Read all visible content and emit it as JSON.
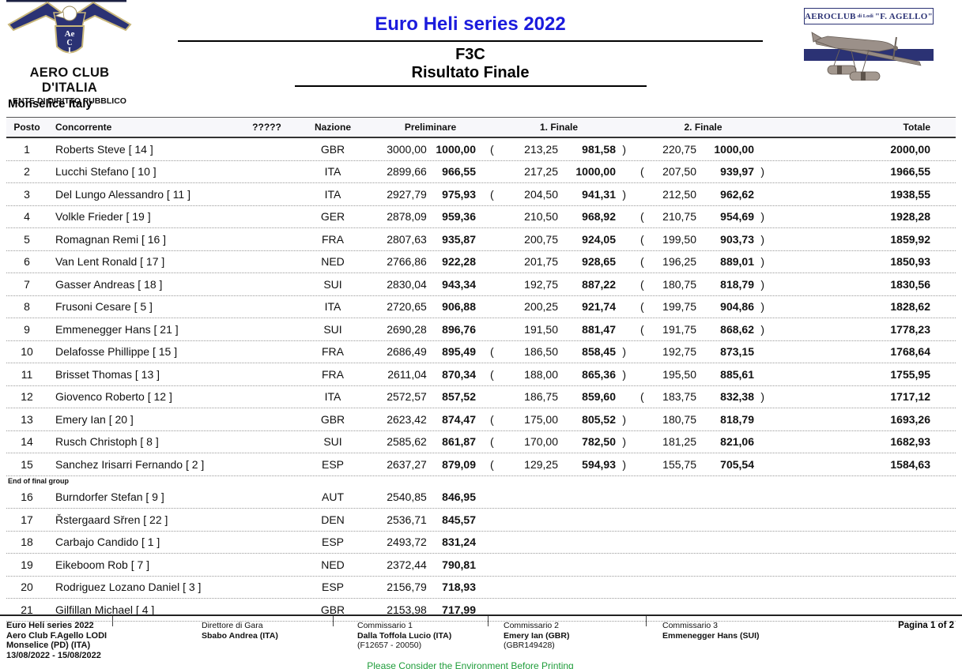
{
  "colors": {
    "title_blue": "#1b1bdd",
    "navy": "#2b3274",
    "gold": "#c9b77a",
    "eco_green": "#1f9d3a"
  },
  "header": {
    "left_logo": {
      "org": "AERO CLUB D'ITALIA",
      "sub": "ENTE DI DIRITTO PUBBLICO",
      "shield_line1": "Ae",
      "shield_line2": "C",
      "shield_line3": "I"
    },
    "title": "Euro Heli series 2022",
    "class": "F3C",
    "subtitle": "Risultato Finale",
    "right_logo": {
      "text_main": "AEROCLUB",
      "text_small": "di Lodi",
      "text_quote": "\"F. AGELLO\""
    },
    "location": "Monselice Italy"
  },
  "table": {
    "columns": {
      "posto": "Posto",
      "concorrente": "Concorrente",
      "unknown": "?????",
      "nazione": "Nazione",
      "preliminare": "Preliminare",
      "finale1": "1. Finale",
      "finale2": "2. Finale",
      "totale": "Totale"
    },
    "rows": [
      {
        "posto": "1",
        "name": "Roberts Steve  [ 14 ]",
        "nazione": "GBR",
        "prelim": {
          "raw": "3000,00",
          "pts": "1000,00"
        },
        "f1": {
          "raw": "213,25",
          "pts": "981,58",
          "dropped": true
        },
        "f2": {
          "raw": "220,75",
          "pts": "1000,00",
          "dropped": false
        },
        "totale": "2000,00"
      },
      {
        "posto": "2",
        "name": "Lucchi Stefano  [ 10 ]",
        "nazione": "ITA",
        "prelim": {
          "raw": "2899,66",
          "pts": "966,55"
        },
        "f1": {
          "raw": "217,25",
          "pts": "1000,00",
          "dropped": false
        },
        "f2": {
          "raw": "207,50",
          "pts": "939,97",
          "dropped": true
        },
        "totale": "1966,55"
      },
      {
        "posto": "3",
        "name": "Del Lungo Alessandro  [ 11 ]",
        "nazione": "ITA",
        "prelim": {
          "raw": "2927,79",
          "pts": "975,93"
        },
        "f1": {
          "raw": "204,50",
          "pts": "941,31",
          "dropped": true
        },
        "f2": {
          "raw": "212,50",
          "pts": "962,62",
          "dropped": false
        },
        "totale": "1938,55"
      },
      {
        "posto": "4",
        "name": "Volkle Frieder  [ 19 ]",
        "nazione": "GER",
        "prelim": {
          "raw": "2878,09",
          "pts": "959,36"
        },
        "f1": {
          "raw": "210,50",
          "pts": "968,92",
          "dropped": false
        },
        "f2": {
          "raw": "210,75",
          "pts": "954,69",
          "dropped": true
        },
        "totale": "1928,28"
      },
      {
        "posto": "5",
        "name": "Romagnan Remi  [ 16 ]",
        "nazione": "FRA",
        "prelim": {
          "raw": "2807,63",
          "pts": "935,87"
        },
        "f1": {
          "raw": "200,75",
          "pts": "924,05",
          "dropped": false
        },
        "f2": {
          "raw": "199,50",
          "pts": "903,73",
          "dropped": true
        },
        "totale": "1859,92"
      },
      {
        "posto": "6",
        "name": "Van Lent Ronald  [ 17 ]",
        "nazione": "NED",
        "prelim": {
          "raw": "2766,86",
          "pts": "922,28"
        },
        "f1": {
          "raw": "201,75",
          "pts": "928,65",
          "dropped": false
        },
        "f2": {
          "raw": "196,25",
          "pts": "889,01",
          "dropped": true
        },
        "totale": "1850,93"
      },
      {
        "posto": "7",
        "name": "Gasser Andreas  [ 18 ]",
        "nazione": "SUI",
        "prelim": {
          "raw": "2830,04",
          "pts": "943,34"
        },
        "f1": {
          "raw": "192,75",
          "pts": "887,22",
          "dropped": false
        },
        "f2": {
          "raw": "180,75",
          "pts": "818,79",
          "dropped": true
        },
        "totale": "1830,56"
      },
      {
        "posto": "8",
        "name": "Frusoni Cesare  [ 5 ]",
        "nazione": "ITA",
        "prelim": {
          "raw": "2720,65",
          "pts": "906,88"
        },
        "f1": {
          "raw": "200,25",
          "pts": "921,74",
          "dropped": false
        },
        "f2": {
          "raw": "199,75",
          "pts": "904,86",
          "dropped": true
        },
        "totale": "1828,62"
      },
      {
        "posto": "9",
        "name": "Emmenegger Hans  [ 21 ]",
        "nazione": "SUI",
        "prelim": {
          "raw": "2690,28",
          "pts": "896,76"
        },
        "f1": {
          "raw": "191,50",
          "pts": "881,47",
          "dropped": false
        },
        "f2": {
          "raw": "191,75",
          "pts": "868,62",
          "dropped": true
        },
        "totale": "1778,23"
      },
      {
        "posto": "10",
        "name": "Delafosse Phillippe  [ 15 ]",
        "nazione": "FRA",
        "prelim": {
          "raw": "2686,49",
          "pts": "895,49"
        },
        "f1": {
          "raw": "186,50",
          "pts": "858,45",
          "dropped": true
        },
        "f2": {
          "raw": "192,75",
          "pts": "873,15",
          "dropped": false
        },
        "totale": "1768,64"
      },
      {
        "posto": "11",
        "name": "Brisset Thomas  [ 13 ]",
        "nazione": "FRA",
        "prelim": {
          "raw": "2611,04",
          "pts": "870,34"
        },
        "f1": {
          "raw": "188,00",
          "pts": "865,36",
          "dropped": true
        },
        "f2": {
          "raw": "195,50",
          "pts": "885,61",
          "dropped": false
        },
        "totale": "1755,95"
      },
      {
        "posto": "12",
        "name": "Giovenco Roberto  [ 12 ]",
        "nazione": "ITA",
        "prelim": {
          "raw": "2572,57",
          "pts": "857,52"
        },
        "f1": {
          "raw": "186,75",
          "pts": "859,60",
          "dropped": false
        },
        "f2": {
          "raw": "183,75",
          "pts": "832,38",
          "dropped": true
        },
        "totale": "1717,12"
      },
      {
        "posto": "13",
        "name": "Emery Ian  [ 20 ]",
        "nazione": "GBR",
        "prelim": {
          "raw": "2623,42",
          "pts": "874,47"
        },
        "f1": {
          "raw": "175,00",
          "pts": "805,52",
          "dropped": true
        },
        "f2": {
          "raw": "180,75",
          "pts": "818,79",
          "dropped": false
        },
        "totale": "1693,26"
      },
      {
        "posto": "14",
        "name": "Rusch Christoph  [ 8 ]",
        "nazione": "SUI",
        "prelim": {
          "raw": "2585,62",
          "pts": "861,87"
        },
        "f1": {
          "raw": "170,00",
          "pts": "782,50",
          "dropped": true
        },
        "f2": {
          "raw": "181,25",
          "pts": "821,06",
          "dropped": false
        },
        "totale": "1682,93"
      },
      {
        "posto": "15",
        "name": "Sanchez Irisarri Fernando  [ 2 ]",
        "nazione": "ESP",
        "prelim": {
          "raw": "2637,27",
          "pts": "879,09"
        },
        "f1": {
          "raw": "129,25",
          "pts": "594,93",
          "dropped": true
        },
        "f2": {
          "raw": "155,75",
          "pts": "705,54",
          "dropped": false
        },
        "totale": "1584,63",
        "note_after": "End of final group"
      },
      {
        "posto": "16",
        "name": "Burndorfer Stefan  [ 9 ]",
        "nazione": "AUT",
        "prelim": {
          "raw": "2540,85",
          "pts": "846,95"
        },
        "totale": ""
      },
      {
        "posto": "17",
        "name": "Řstergaard Sřren  [ 22 ]",
        "nazione": "DEN",
        "prelim": {
          "raw": "2536,71",
          "pts": "845,57"
        },
        "totale": ""
      },
      {
        "posto": "18",
        "name": "Carbajo Candido  [ 1 ]",
        "nazione": "ESP",
        "prelim": {
          "raw": "2493,72",
          "pts": "831,24"
        },
        "totale": ""
      },
      {
        "posto": "19",
        "name": "Eikeboom Rob  [ 7 ]",
        "nazione": "NED",
        "prelim": {
          "raw": "2372,44",
          "pts": "790,81"
        },
        "totale": ""
      },
      {
        "posto": "20",
        "name": "Rodriguez Lozano Daniel  [ 3 ]",
        "nazione": "ESP",
        "prelim": {
          "raw": "2156,79",
          "pts": "718,93"
        },
        "totale": ""
      },
      {
        "posto": "21",
        "name": "Gilfillan Michael  [ 4 ]",
        "nazione": "GBR",
        "prelim": {
          "raw": "2153,98",
          "pts": "717,99"
        },
        "totale": ""
      }
    ]
  },
  "footer": {
    "event_lines": [
      "Euro Heli series 2022",
      "Aero Club F.Agello LODI",
      "Monselice (PD) (ITA)",
      "13/08/2022 - 15/08/2022"
    ],
    "officials": [
      {
        "role": "Direttore di Gara",
        "name": "Sbabo Andrea (ITA)",
        "id": ""
      },
      {
        "role": "Commissario 1",
        "name": "Dalla Toffola Lucio (ITA)",
        "id": "(F12657 - 20050)"
      },
      {
        "role": "Commissario 2",
        "name": "Emery Ian (GBR)",
        "id": "(GBR149428)"
      },
      {
        "role": "Commissario 3",
        "name": "Emmenegger Hans (SUI)",
        "id": ""
      }
    ],
    "page": "Pagina 1 of 2",
    "eco_note": "Please Consider the Environment Before Printing"
  }
}
